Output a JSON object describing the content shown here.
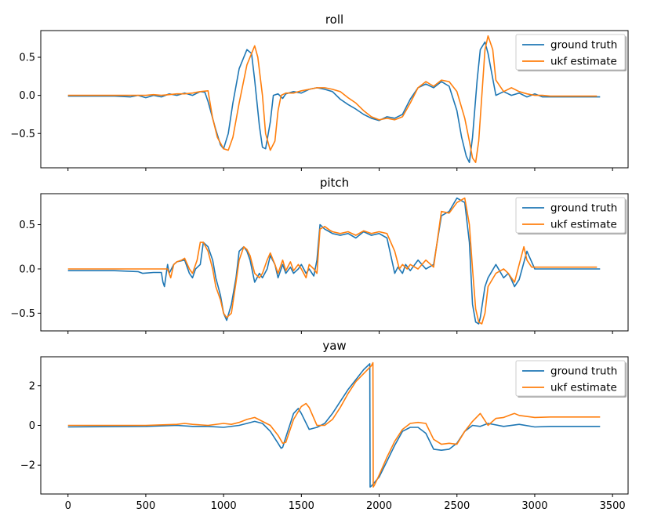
{
  "colors": {
    "ground_truth": "#1f77b4",
    "ukf_estimate": "#ff7f0e"
  },
  "legend_position": "top-right",
  "chart_data": [
    {
      "type": "line",
      "title": "roll",
      "xlim": [
        -175,
        3600
      ],
      "ylim": [
        -0.95,
        0.85
      ],
      "xticks": [
        0,
        500,
        1000,
        1500,
        2000,
        2500,
        3000,
        3500
      ],
      "yticks": [
        -0.5,
        0.0,
        0.5
      ],
      "ytick_labels": [
        "−0.5",
        "0.0",
        "0.5"
      ],
      "show_xtick_labels": false,
      "series": [
        {
          "name": "ground truth",
          "color": "#1f77b4",
          "x": [
            0,
            300,
            400,
            450,
            500,
            550,
            600,
            650,
            700,
            750,
            800,
            850,
            880,
            900,
            950,
            980,
            1000,
            1030,
            1060,
            1100,
            1150,
            1180,
            1200,
            1230,
            1250,
            1270,
            1300,
            1320,
            1350,
            1380,
            1400,
            1450,
            1500,
            1550,
            1600,
            1650,
            1700,
            1750,
            1800,
            1850,
            1900,
            1950,
            2000,
            2050,
            2100,
            2150,
            2200,
            2250,
            2300,
            2350,
            2400,
            2450,
            2500,
            2530,
            2560,
            2580,
            2600,
            2630,
            2650,
            2680,
            2700,
            2750,
            2800,
            2850,
            2900,
            2950,
            3000,
            3050,
            3100,
            3200,
            3300,
            3400,
            3420
          ],
          "y": [
            -0.01,
            -0.01,
            -0.02,
            0.0,
            -0.03,
            0.0,
            -0.02,
            0.02,
            0.0,
            0.03,
            0.0,
            0.05,
            0.04,
            -0.08,
            -0.45,
            -0.65,
            -0.7,
            -0.5,
            -0.1,
            0.35,
            0.6,
            0.55,
            0.2,
            -0.4,
            -0.68,
            -0.7,
            -0.35,
            0.0,
            0.02,
            -0.04,
            0.02,
            0.05,
            0.03,
            0.08,
            0.1,
            0.08,
            0.05,
            -0.05,
            -0.12,
            -0.18,
            -0.25,
            -0.3,
            -0.33,
            -0.28,
            -0.3,
            -0.25,
            -0.05,
            0.1,
            0.15,
            0.1,
            0.18,
            0.12,
            -0.2,
            -0.55,
            -0.8,
            -0.88,
            -0.55,
            0.2,
            0.6,
            0.7,
            0.55,
            0.0,
            0.05,
            0.0,
            0.03,
            -0.02,
            0.02,
            -0.02,
            -0.02,
            -0.02,
            -0.02,
            -0.02,
            -0.02
          ]
        },
        {
          "name": "ukf estimate",
          "color": "#ff7f0e",
          "x": [
            0,
            300,
            400,
            450,
            500,
            550,
            600,
            650,
            700,
            750,
            800,
            850,
            900,
            930,
            960,
            1000,
            1030,
            1060,
            1100,
            1150,
            1200,
            1220,
            1250,
            1270,
            1300,
            1330,
            1350,
            1370,
            1400,
            1450,
            1500,
            1550,
            1600,
            1650,
            1700,
            1750,
            1800,
            1850,
            1900,
            1950,
            2000,
            2050,
            2100,
            2150,
            2200,
            2250,
            2300,
            2350,
            2400,
            2450,
            2500,
            2550,
            2580,
            2600,
            2620,
            2640,
            2660,
            2680,
            2700,
            2730,
            2750,
            2800,
            2850,
            2900,
            2950,
            3000,
            3050,
            3100,
            3200,
            3300,
            3400
          ],
          "y": [
            0.0,
            0.0,
            0.0,
            0.0,
            0.0,
            0.01,
            0.0,
            0.01,
            0.02,
            0.02,
            0.03,
            0.05,
            0.06,
            -0.3,
            -0.55,
            -0.7,
            -0.72,
            -0.55,
            -0.1,
            0.4,
            0.65,
            0.5,
            0.0,
            -0.5,
            -0.72,
            -0.6,
            -0.2,
            0.0,
            0.03,
            0.03,
            0.06,
            0.08,
            0.1,
            0.1,
            0.08,
            0.05,
            -0.03,
            -0.1,
            -0.2,
            -0.28,
            -0.32,
            -0.3,
            -0.32,
            -0.28,
            -0.1,
            0.1,
            0.18,
            0.12,
            0.2,
            0.18,
            0.05,
            -0.3,
            -0.6,
            -0.82,
            -0.88,
            -0.6,
            0.0,
            0.6,
            0.78,
            0.6,
            0.2,
            0.05,
            0.1,
            0.05,
            0.02,
            0.0,
            0.0,
            -0.01,
            -0.01,
            -0.01,
            -0.01
          ]
        }
      ]
    },
    {
      "type": "line",
      "title": "pitch",
      "xlim": [
        -175,
        3600
      ],
      "ylim": [
        -0.7,
        0.85
      ],
      "xticks": [
        0,
        500,
        1000,
        1500,
        2000,
        2500,
        3000,
        3500
      ],
      "yticks": [
        -0.5,
        0.0,
        0.5
      ],
      "ytick_labels": [
        "−0.5",
        "0.0",
        "0.5"
      ],
      "show_xtick_labels": false,
      "series": [
        {
          "name": "ground truth",
          "color": "#1f77b4",
          "x": [
            0,
            300,
            450,
            480,
            550,
            600,
            610,
            620,
            640,
            650,
            680,
            700,
            750,
            780,
            800,
            820,
            850,
            870,
            900,
            930,
            950,
            980,
            1000,
            1020,
            1050,
            1080,
            1100,
            1130,
            1150,
            1170,
            1200,
            1230,
            1250,
            1280,
            1300,
            1330,
            1350,
            1380,
            1400,
            1430,
            1450,
            1480,
            1500,
            1530,
            1550,
            1580,
            1600,
            1620,
            1650,
            1680,
            1700,
            1750,
            1800,
            1850,
            1900,
            1950,
            2000,
            2050,
            2100,
            2120,
            2150,
            2170,
            2200,
            2250,
            2300,
            2350,
            2400,
            2450,
            2500,
            2550,
            2580,
            2600,
            2620,
            2640,
            2650,
            2680,
            2700,
            2750,
            2800,
            2830,
            2850,
            2870,
            2900,
            2950,
            3000,
            3100,
            3200,
            3300,
            3400,
            3420
          ],
          "y": [
            -0.02,
            -0.02,
            -0.03,
            -0.05,
            -0.04,
            -0.04,
            -0.15,
            -0.2,
            0.05,
            -0.05,
            0.05,
            0.08,
            0.1,
            -0.05,
            -0.1,
            0.0,
            0.05,
            0.3,
            0.25,
            0.1,
            -0.1,
            -0.3,
            -0.5,
            -0.58,
            -0.4,
            -0.1,
            0.2,
            0.25,
            0.2,
            0.1,
            -0.15,
            -0.05,
            -0.1,
            0.0,
            0.15,
            0.05,
            -0.1,
            0.05,
            -0.05,
            0.02,
            -0.05,
            0.0,
            0.05,
            -0.05,
            0.0,
            -0.08,
            0.1,
            0.5,
            0.45,
            0.42,
            0.4,
            0.38,
            0.4,
            0.35,
            0.42,
            0.38,
            0.4,
            0.35,
            -0.05,
            0.02,
            -0.05,
            0.05,
            -0.02,
            0.1,
            0.0,
            0.05,
            0.6,
            0.65,
            0.8,
            0.75,
            0.3,
            -0.4,
            -0.6,
            -0.62,
            -0.55,
            -0.2,
            -0.1,
            0.05,
            -0.1,
            -0.05,
            -0.12,
            -0.2,
            -0.12,
            0.2,
            0.0,
            0.0,
            0.0,
            0.0,
            0.0,
            0.0
          ]
        },
        {
          "name": "ukf estimate",
          "color": "#ff7f0e",
          "x": [
            0,
            300,
            550,
            600,
            620,
            640,
            660,
            680,
            700,
            730,
            750,
            780,
            800,
            830,
            850,
            870,
            900,
            930,
            950,
            980,
            1000,
            1020,
            1050,
            1080,
            1100,
            1130,
            1150,
            1170,
            1200,
            1230,
            1250,
            1280,
            1300,
            1330,
            1350,
            1380,
            1400,
            1430,
            1450,
            1480,
            1500,
            1530,
            1550,
            1580,
            1600,
            1620,
            1650,
            1680,
            1700,
            1750,
            1800,
            1850,
            1900,
            1950,
            2000,
            2050,
            2100,
            2130,
            2150,
            2180,
            2200,
            2250,
            2300,
            2350,
            2400,
            2450,
            2500,
            2550,
            2580,
            2600,
            2620,
            2640,
            2660,
            2680,
            2700,
            2750,
            2800,
            2830,
            2850,
            2870,
            2900,
            2930,
            2950,
            2980,
            3000,
            3100,
            3200,
            3300,
            3400
          ],
          "y": [
            0.0,
            0.0,
            0.0,
            0.0,
            0.0,
            0.0,
            -0.1,
            0.05,
            0.08,
            0.1,
            0.12,
            0.0,
            -0.05,
            0.1,
            0.3,
            0.3,
            0.2,
            0.0,
            -0.2,
            -0.35,
            -0.5,
            -0.55,
            -0.5,
            -0.15,
            0.1,
            0.25,
            0.22,
            0.15,
            -0.05,
            -0.1,
            -0.05,
            0.1,
            0.18,
            0.05,
            -0.05,
            0.1,
            -0.02,
            0.08,
            -0.02,
            0.05,
            0.0,
            -0.1,
            0.05,
            0.0,
            -0.05,
            0.45,
            0.48,
            0.44,
            0.42,
            0.4,
            0.42,
            0.38,
            0.43,
            0.4,
            0.42,
            0.4,
            0.2,
            0.0,
            0.05,
            0.0,
            0.05,
            0.0,
            0.1,
            0.02,
            0.65,
            0.63,
            0.75,
            0.8,
            0.5,
            0.0,
            -0.45,
            -0.6,
            -0.62,
            -0.5,
            -0.2,
            -0.05,
            0.0,
            -0.05,
            -0.1,
            -0.15,
            0.05,
            0.25,
            0.1,
            0.02,
            0.02,
            0.02,
            0.02,
            0.02,
            0.02
          ]
        }
      ]
    },
    {
      "type": "line",
      "title": "yaw",
      "xlim": [
        -175,
        3600
      ],
      "ylim": [
        -3.45,
        3.45
      ],
      "xticks": [
        0,
        500,
        1000,
        1500,
        2000,
        2500,
        3000,
        3500
      ],
      "xtick_labels": [
        "0",
        "500",
        "1000",
        "1500",
        "2000",
        "2500",
        "3000",
        "3500"
      ],
      "yticks": [
        -2,
        0,
        2
      ],
      "ytick_labels": [
        "−2",
        "0",
        "2"
      ],
      "show_xtick_labels": true,
      "series": [
        {
          "name": "ground truth",
          "color": "#1f77b4",
          "x": [
            0,
            500,
            700,
            800,
            900,
            1000,
            1100,
            1150,
            1200,
            1250,
            1300,
            1350,
            1370,
            1380,
            1400,
            1450,
            1480,
            1500,
            1550,
            1600,
            1650,
            1700,
            1750,
            1800,
            1850,
            1900,
            1940,
            1942,
            1950,
            2000,
            2050,
            2100,
            2150,
            2200,
            2250,
            2300,
            2350,
            2400,
            2450,
            2500,
            2550,
            2600,
            2650,
            2700,
            2800,
            2900,
            3000,
            3100,
            3200,
            3300,
            3400,
            3420
          ],
          "y": [
            -0.08,
            -0.05,
            0.0,
            -0.05,
            -0.05,
            -0.1,
            0.0,
            0.1,
            0.2,
            0.1,
            -0.3,
            -0.9,
            -1.15,
            -1.1,
            -0.6,
            0.6,
            0.85,
            0.6,
            -0.2,
            -0.1,
            0.1,
            0.6,
            1.2,
            1.8,
            2.3,
            2.8,
            3.1,
            -3.1,
            -3.05,
            -2.6,
            -1.8,
            -1.0,
            -0.3,
            -0.1,
            -0.1,
            -0.4,
            -1.2,
            -1.25,
            -1.2,
            -0.9,
            -0.3,
            0.0,
            -0.05,
            0.1,
            -0.05,
            0.05,
            -0.08,
            -0.05,
            -0.05,
            -0.05,
            -0.05,
            -0.05
          ]
        },
        {
          "name": "ukf estimate",
          "color": "#ff7f0e",
          "x": [
            0,
            500,
            700,
            750,
            800,
            900,
            1000,
            1050,
            1100,
            1150,
            1200,
            1250,
            1300,
            1350,
            1380,
            1400,
            1450,
            1500,
            1530,
            1550,
            1600,
            1650,
            1700,
            1750,
            1800,
            1850,
            1900,
            1950,
            1960,
            1962,
            1970,
            2000,
            2050,
            2100,
            2150,
            2200,
            2250,
            2300,
            2350,
            2400,
            2450,
            2500,
            2550,
            2600,
            2650,
            2700,
            2750,
            2800,
            2850,
            2870,
            2900,
            3000,
            3100,
            3200,
            3300,
            3400,
            3420
          ],
          "y": [
            0.0,
            0.0,
            0.05,
            0.1,
            0.05,
            0.0,
            0.1,
            0.05,
            0.15,
            0.3,
            0.4,
            0.2,
            0.0,
            -0.5,
            -0.9,
            -0.85,
            0.3,
            0.95,
            1.1,
            0.9,
            0.0,
            0.0,
            0.3,
            0.9,
            1.6,
            2.2,
            2.6,
            3.0,
            3.15,
            -3.1,
            -3.0,
            -2.5,
            -1.6,
            -0.8,
            -0.2,
            0.1,
            0.15,
            0.1,
            -0.7,
            -0.95,
            -0.9,
            -0.95,
            -0.3,
            0.2,
            0.6,
            0.0,
            0.35,
            0.4,
            0.55,
            0.6,
            0.5,
            0.4,
            0.42,
            0.42,
            0.42,
            0.42,
            0.42
          ]
        }
      ]
    }
  ]
}
